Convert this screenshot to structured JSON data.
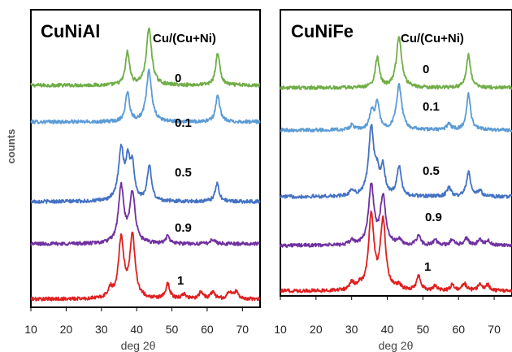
{
  "chart_data": [
    {
      "type": "line",
      "title": "CuNiAl",
      "legend_title": "Cu/(Cu+Ni)",
      "xlabel": "deg 2θ",
      "ylabel": "counts",
      "xlim": [
        10,
        75
      ],
      "xticks": [
        10,
        20,
        30,
        40,
        50,
        60,
        70
      ],
      "grid": false,
      "peaks_description_units": "deg 2θ",
      "series": [
        {
          "name": "0",
          "color": "#70ad47",
          "peaks": [
            [
              37.4,
              0.55
            ],
            [
              43.5,
              0.95
            ],
            [
              63.0,
              0.55
            ]
          ]
        },
        {
          "name": "0.1",
          "color": "#5b9bd5",
          "peaks": [
            [
              37.4,
              0.5
            ],
            [
              43.5,
              0.85
            ],
            [
              63.0,
              0.45
            ]
          ]
        },
        {
          "name": "0.5",
          "color": "#4472c4",
          "peaks": [
            [
              35.6,
              0.85
            ],
            [
              37.5,
              0.6
            ],
            [
              38.8,
              0.55
            ],
            [
              43.6,
              0.6
            ],
            [
              62.8,
              0.3
            ]
          ]
        },
        {
          "name": "0.9",
          "color": "#7030a0",
          "peaks": [
            [
              35.6,
              0.95
            ],
            [
              38.8,
              0.85
            ],
            [
              48.8,
              0.12
            ],
            [
              61.6,
              0.08
            ]
          ]
        },
        {
          "name": "1",
          "color": "#e02020",
          "peaks": [
            [
              32.5,
              0.15
            ],
            [
              35.6,
              1.0
            ],
            [
              38.8,
              1.05
            ],
            [
              48.8,
              0.25
            ],
            [
              53.5,
              0.08
            ],
            [
              58.3,
              0.12
            ],
            [
              61.6,
              0.12
            ],
            [
              66.3,
              0.12
            ],
            [
              68.2,
              0.12
            ]
          ]
        }
      ]
    },
    {
      "type": "line",
      "title": "CuNiFe",
      "legend_title": "Cu/(Cu+Ni)",
      "xlabel": "deg 2θ",
      "ylabel": "",
      "xlim": [
        10,
        75
      ],
      "xticks": [
        10,
        20,
        30,
        40,
        50,
        60,
        70
      ],
      "grid": false,
      "series": [
        {
          "name": "0",
          "color": "#70ad47",
          "peaks": [
            [
              37.2,
              0.5
            ],
            [
              43.3,
              0.85
            ],
            [
              62.8,
              0.55
            ]
          ]
        },
        {
          "name": "0.1",
          "color": "#5b9bd5",
          "peaks": [
            [
              30.1,
              0.08
            ],
            [
              35.6,
              0.3
            ],
            [
              37.2,
              0.45
            ],
            [
              43.3,
              0.75
            ],
            [
              57.3,
              0.1
            ],
            [
              62.8,
              0.6
            ]
          ]
        },
        {
          "name": "0.5",
          "color": "#4472c4",
          "peaks": [
            [
              30.1,
              0.1
            ],
            [
              35.5,
              1.15
            ],
            [
              37.2,
              0.3
            ],
            [
              38.8,
              0.45
            ],
            [
              43.3,
              0.5
            ],
            [
              57.3,
              0.15
            ],
            [
              62.8,
              0.4
            ],
            [
              66.0,
              0.1
            ]
          ]
        },
        {
          "name": "0.9",
          "color": "#7030a0",
          "peaks": [
            [
              30.1,
              0.08
            ],
            [
              35.5,
              1.0
            ],
            [
              38.8,
              0.8
            ],
            [
              43.3,
              0.08
            ],
            [
              48.8,
              0.15
            ],
            [
              53.5,
              0.08
            ],
            [
              58.3,
              0.1
            ],
            [
              62.2,
              0.12
            ],
            [
              66.0,
              0.1
            ],
            [
              68.2,
              0.08
            ]
          ]
        },
        {
          "name": "1",
          "color": "#e02020",
          "peaks": [
            [
              30.1,
              0.12
            ],
            [
              32.2,
              0.08
            ],
            [
              35.5,
              1.25
            ],
            [
              38.8,
              1.15
            ],
            [
              43.3,
              0.08
            ],
            [
              48.8,
              0.25
            ],
            [
              53.5,
              0.08
            ],
            [
              58.3,
              0.1
            ],
            [
              61.6,
              0.12
            ],
            [
              66.0,
              0.12
            ],
            [
              68.2,
              0.1
            ]
          ]
        }
      ]
    }
  ]
}
